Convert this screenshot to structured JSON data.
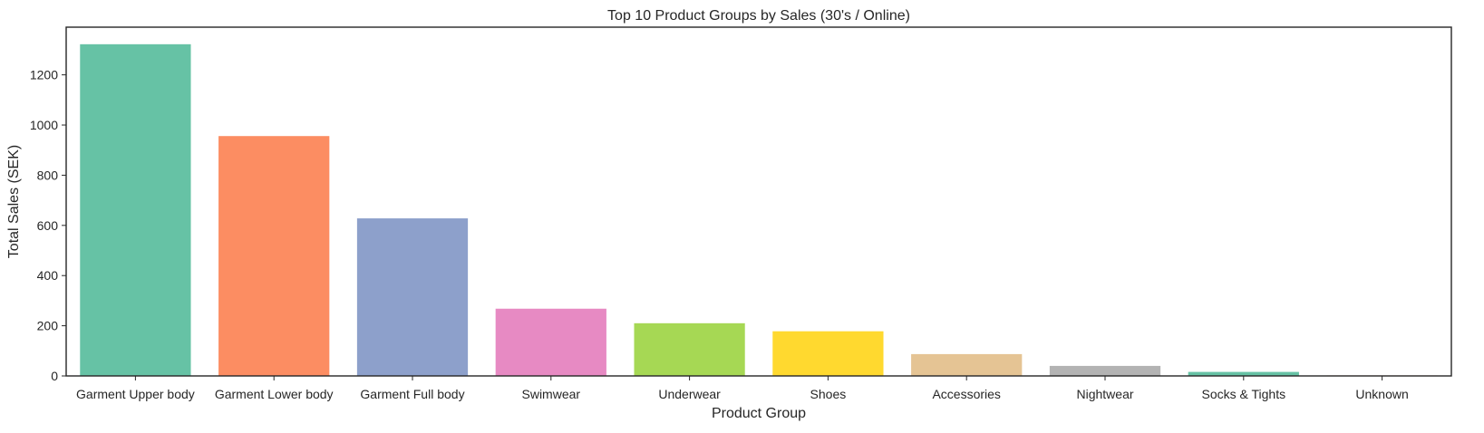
{
  "chart_data": {
    "type": "bar",
    "title": "Top 10 Product Groups by Sales (30's / Online)",
    "xlabel": "Product Group",
    "ylabel": "Total Sales (SEK)",
    "ylim": [
      0,
      1390
    ],
    "yticks": [
      0,
      200,
      400,
      600,
      800,
      1000,
      1200
    ],
    "grid": false,
    "categories": [
      "Garment Upper body",
      "Garment Lower body",
      "Garment Full body",
      "Swimwear",
      "Underwear",
      "Shoes",
      "Accessories",
      "Nightwear",
      "Socks & Tights",
      "Unknown"
    ],
    "values": [
      1322,
      956,
      628,
      268,
      210,
      178,
      87,
      40,
      16,
      2
    ],
    "colors": [
      "#66c2a5",
      "#fc8d62",
      "#8da0cb",
      "#e78ac3",
      "#a6d854",
      "#ffd92f",
      "#e5c494",
      "#b3b3b3",
      "#66c2a5",
      "#fc8d62"
    ]
  }
}
